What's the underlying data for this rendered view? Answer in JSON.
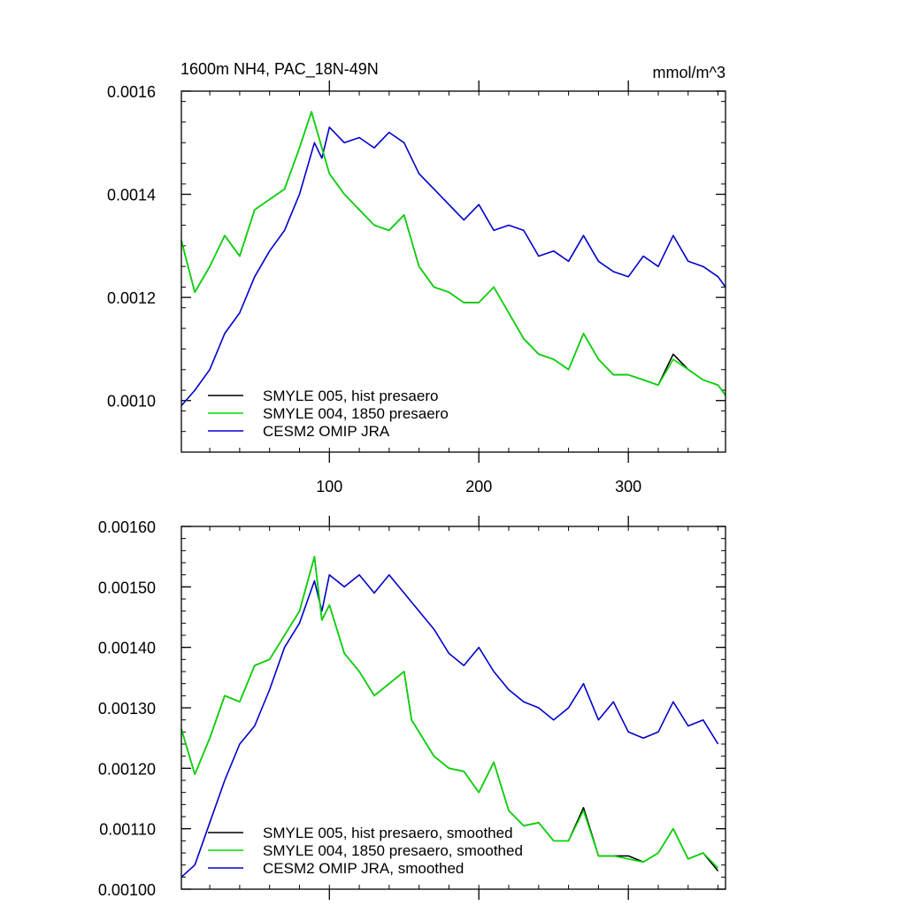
{
  "chart_data": [
    {
      "type": "line",
      "title": "1600m NH4, PAC_18N-49N",
      "units": "mmol/m^3",
      "xlim": [
        1,
        365
      ],
      "ylim": [
        0.0009,
        0.0016
      ],
      "xticks": [
        100,
        200,
        300
      ],
      "xtick_labels": [
        "100",
        "200",
        "300"
      ],
      "yticks": [
        0.001,
        0.0012,
        0.0014,
        0.0016
      ],
      "ytick_labels": [
        "0.0010",
        "0.0012",
        "0.0014",
        "0.0016"
      ],
      "legend_position": "bottom-left",
      "series": [
        {
          "name": "SMYLE 005, hist presaero",
          "color": "#000000",
          "x": [
            1,
            10,
            20,
            30,
            40,
            50,
            60,
            70,
            80,
            88,
            95,
            100,
            110,
            120,
            130,
            140,
            150,
            160,
            170,
            180,
            190,
            200,
            210,
            220,
            230,
            240,
            250,
            260,
            270,
            280,
            290,
            300,
            310,
            320,
            330,
            340,
            350,
            360,
            365
          ],
          "y": [
            0.00131,
            0.00121,
            0.00126,
            0.00132,
            0.00128,
            0.00137,
            0.00139,
            0.00141,
            0.00149,
            0.00156,
            0.00149,
            0.00144,
            0.0014,
            0.00137,
            0.00134,
            0.00133,
            0.00136,
            0.00126,
            0.00122,
            0.00121,
            0.00119,
            0.00119,
            0.00122,
            0.00117,
            0.00112,
            0.00109,
            0.00108,
            0.00106,
            0.00113,
            0.00108,
            0.00105,
            0.00105,
            0.00104,
            0.00103,
            0.00109,
            0.00106,
            0.00104,
            0.00103,
            0.00101
          ]
        },
        {
          "name": "SMYLE 004, 1850 presaero",
          "color": "#00dd00",
          "x": [
            1,
            10,
            20,
            30,
            40,
            50,
            60,
            70,
            80,
            88,
            95,
            100,
            110,
            120,
            130,
            140,
            150,
            160,
            170,
            180,
            190,
            200,
            210,
            220,
            230,
            240,
            250,
            260,
            270,
            280,
            290,
            300,
            310,
            320,
            330,
            340,
            350,
            360,
            365
          ],
          "y": [
            0.00131,
            0.00121,
            0.00126,
            0.00132,
            0.00128,
            0.00137,
            0.00139,
            0.00141,
            0.00149,
            0.00156,
            0.00149,
            0.00144,
            0.0014,
            0.00137,
            0.00134,
            0.00133,
            0.00136,
            0.00126,
            0.00122,
            0.00121,
            0.00119,
            0.00119,
            0.00122,
            0.00117,
            0.00112,
            0.00109,
            0.00108,
            0.00106,
            0.00113,
            0.00108,
            0.00105,
            0.00105,
            0.00104,
            0.00103,
            0.00108,
            0.00106,
            0.00104,
            0.00103,
            0.00101
          ]
        },
        {
          "name": "CESM2 OMIP JRA",
          "color": "#0000cc",
          "x": [
            1,
            10,
            20,
            30,
            40,
            50,
            60,
            70,
            80,
            90,
            95,
            100,
            110,
            120,
            130,
            140,
            150,
            160,
            170,
            180,
            190,
            200,
            210,
            220,
            230,
            240,
            250,
            260,
            270,
            280,
            290,
            300,
            310,
            320,
            330,
            340,
            350,
            360,
            365
          ],
          "y": [
            0.00099,
            0.00102,
            0.00106,
            0.00113,
            0.00117,
            0.00124,
            0.00129,
            0.00133,
            0.0014,
            0.0015,
            0.00147,
            0.00153,
            0.0015,
            0.00151,
            0.00149,
            0.00152,
            0.0015,
            0.00144,
            0.00141,
            0.00138,
            0.00135,
            0.00138,
            0.00133,
            0.00134,
            0.00133,
            0.00128,
            0.00129,
            0.00127,
            0.00132,
            0.00127,
            0.00125,
            0.00124,
            0.00128,
            0.00126,
            0.00132,
            0.00127,
            0.00126,
            0.00124,
            0.00122
          ]
        }
      ]
    },
    {
      "type": "line",
      "title": "",
      "xlim": [
        1,
        365
      ],
      "ylim": [
        0.001,
        0.0016
      ],
      "xticks": [
        100,
        200,
        300
      ],
      "xtick_labels": [],
      "yticks": [
        0.001,
        0.0011,
        0.0012,
        0.0013,
        0.0014,
        0.0015,
        0.0016
      ],
      "ytick_labels": [
        "0.00100",
        "0.00110",
        "0.00120",
        "0.00130",
        "0.00140",
        "0.00150",
        "0.00160"
      ],
      "legend_position": "bottom-left",
      "series": [
        {
          "name": "SMYLE 005, hist presaero, smoothed",
          "color": "#000000",
          "x": [
            1,
            10,
            20,
            30,
            40,
            50,
            60,
            70,
            80,
            90,
            95,
            100,
            110,
            120,
            130,
            140,
            150,
            155,
            160,
            170,
            180,
            190,
            200,
            210,
            220,
            230,
            240,
            250,
            260,
            270,
            280,
            290,
            300,
            310,
            320,
            330,
            340,
            350,
            360
          ],
          "y": [
            0.001265,
            0.00119,
            0.00125,
            0.00132,
            0.00131,
            0.00137,
            0.00138,
            0.00142,
            0.00146,
            0.00155,
            0.001445,
            0.00147,
            0.00139,
            0.00136,
            0.00132,
            0.00134,
            0.00136,
            0.00128,
            0.00126,
            0.00122,
            0.0012,
            0.001195,
            0.00116,
            0.00121,
            0.00113,
            0.001105,
            0.00111,
            0.00108,
            0.00108,
            0.001135,
            0.001055,
            0.001055,
            0.001055,
            0.001045,
            0.00106,
            0.0011,
            0.00105,
            0.00106,
            0.00103
          ]
        },
        {
          "name": "SMYLE 004, 1850 presaero, smoothed",
          "color": "#00dd00",
          "x": [
            1,
            10,
            20,
            30,
            40,
            50,
            60,
            70,
            80,
            90,
            95,
            100,
            110,
            120,
            130,
            140,
            150,
            155,
            160,
            170,
            180,
            190,
            200,
            210,
            220,
            230,
            240,
            250,
            260,
            270,
            280,
            290,
            300,
            310,
            320,
            330,
            340,
            350,
            360
          ],
          "y": [
            0.001265,
            0.00119,
            0.00125,
            0.00132,
            0.00131,
            0.00137,
            0.00138,
            0.00142,
            0.00146,
            0.00155,
            0.001445,
            0.00147,
            0.00139,
            0.00136,
            0.00132,
            0.00134,
            0.00136,
            0.00128,
            0.00126,
            0.00122,
            0.0012,
            0.001195,
            0.00116,
            0.00121,
            0.00113,
            0.001105,
            0.00111,
            0.00108,
            0.00108,
            0.00113,
            0.001055,
            0.001055,
            0.00105,
            0.001045,
            0.00106,
            0.0011,
            0.00105,
            0.00106,
            0.001035
          ]
        },
        {
          "name": "CESM2 OMIP JRA, smoothed",
          "color": "#0000cc",
          "x": [
            1,
            10,
            20,
            30,
            40,
            50,
            60,
            70,
            80,
            90,
            95,
            100,
            110,
            120,
            130,
            140,
            150,
            160,
            170,
            180,
            190,
            200,
            210,
            220,
            230,
            240,
            250,
            260,
            270,
            280,
            290,
            300,
            310,
            320,
            330,
            340,
            350,
            360
          ],
          "y": [
            0.00102,
            0.00104,
            0.00111,
            0.00118,
            0.00124,
            0.00127,
            0.00133,
            0.0014,
            0.00144,
            0.00151,
            0.00146,
            0.00152,
            0.0015,
            0.00152,
            0.00149,
            0.00152,
            0.00149,
            0.00146,
            0.00143,
            0.00139,
            0.00137,
            0.0014,
            0.00136,
            0.00133,
            0.00131,
            0.0013,
            0.00128,
            0.0013,
            0.00134,
            0.00128,
            0.00131,
            0.00126,
            0.00125,
            0.00126,
            0.00131,
            0.00127,
            0.00128,
            0.00124
          ]
        }
      ]
    }
  ]
}
